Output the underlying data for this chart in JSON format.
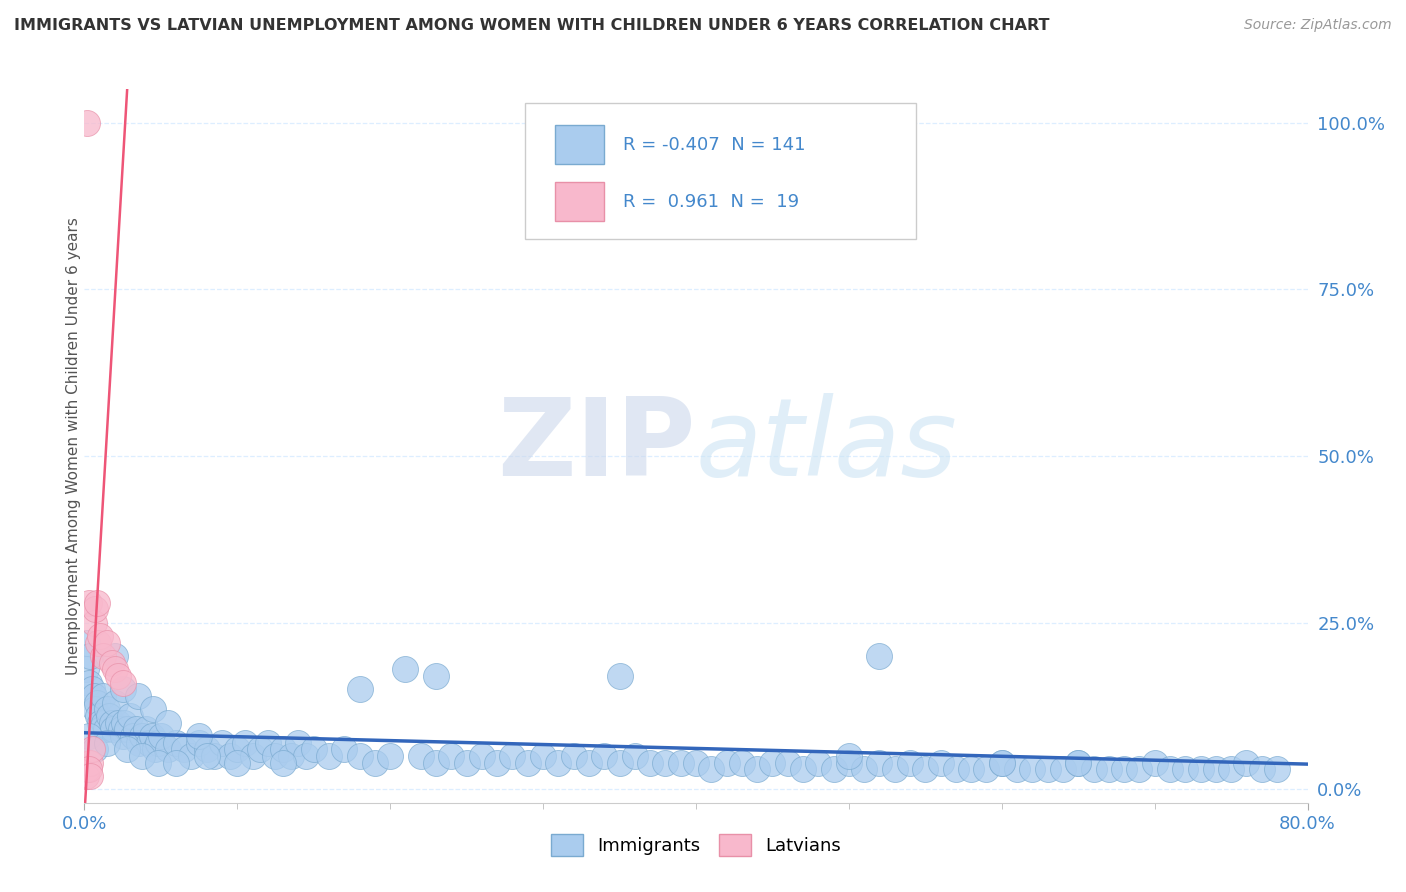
{
  "title": "IMMIGRANTS VS LATVIAN UNEMPLOYMENT AMONG WOMEN WITH CHILDREN UNDER 6 YEARS CORRELATION CHART",
  "source": "Source: ZipAtlas.com",
  "ylabel": "Unemployment Among Women with Children Under 6 years",
  "legend_immigrants": "Immigrants",
  "legend_latvians": "Latvians",
  "R_immigrants": -0.407,
  "N_immigrants": 141,
  "R_latvians": 0.961,
  "N_latvians": 19,
  "immigrant_color": "#aaccee",
  "latvian_color": "#f8b8cc",
  "immigrant_edge_color": "#7aaad0",
  "latvian_edge_color": "#e890a8",
  "trendline_immigrant_color": "#3366bb",
  "trendline_latvian_color": "#ee5577",
  "background_color": "#ffffff",
  "title_color": "#333333",
  "source_color": "#999999",
  "axis_label_color": "#4488cc",
  "grid_color": "#ddeeff",
  "xlim": [
    0.0,
    0.8
  ],
  "ylim": [
    -0.02,
    1.05
  ],
  "trendline_imm_x0": 0.0,
  "trendline_imm_y0": 0.085,
  "trendline_imm_x1": 0.8,
  "trendline_imm_y1": 0.038,
  "trendline_lat_x0": 0.0,
  "trendline_lat_y0": -0.04,
  "trendline_lat_x1": 0.028,
  "trendline_lat_y1": 1.05,
  "immigrants_x": [
    0.001,
    0.002,
    0.003,
    0.004,
    0.005,
    0.006,
    0.007,
    0.008,
    0.009,
    0.01,
    0.011,
    0.012,
    0.013,
    0.014,
    0.015,
    0.016,
    0.018,
    0.019,
    0.02,
    0.022,
    0.024,
    0.025,
    0.026,
    0.028,
    0.03,
    0.032,
    0.034,
    0.036,
    0.038,
    0.04,
    0.042,
    0.044,
    0.046,
    0.048,
    0.05,
    0.055,
    0.06,
    0.065,
    0.07,
    0.075,
    0.08,
    0.085,
    0.09,
    0.095,
    0.1,
    0.105,
    0.11,
    0.115,
    0.12,
    0.125,
    0.13,
    0.135,
    0.14,
    0.145,
    0.15,
    0.16,
    0.17,
    0.18,
    0.19,
    0.2,
    0.21,
    0.22,
    0.23,
    0.24,
    0.25,
    0.26,
    0.27,
    0.28,
    0.29,
    0.3,
    0.31,
    0.32,
    0.33,
    0.34,
    0.35,
    0.36,
    0.37,
    0.38,
    0.39,
    0.4,
    0.41,
    0.42,
    0.43,
    0.44,
    0.45,
    0.46,
    0.47,
    0.48,
    0.49,
    0.5,
    0.51,
    0.52,
    0.53,
    0.54,
    0.55,
    0.56,
    0.57,
    0.58,
    0.59,
    0.6,
    0.61,
    0.62,
    0.63,
    0.64,
    0.65,
    0.66,
    0.67,
    0.68,
    0.69,
    0.7,
    0.71,
    0.72,
    0.73,
    0.74,
    0.75,
    0.76,
    0.77,
    0.78,
    0.02,
    0.025,
    0.035,
    0.045,
    0.055,
    0.075,
    0.35,
    0.52,
    0.18,
    0.23,
    0.003,
    0.007,
    0.015,
    0.028,
    0.038,
    0.048,
    0.06,
    0.08,
    0.1,
    0.13,
    0.5,
    0.6,
    0.65
  ],
  "immigrants_y": [
    0.18,
    0.22,
    0.16,
    0.2,
    0.15,
    0.14,
    0.12,
    0.13,
    0.11,
    0.1,
    0.09,
    0.14,
    0.1,
    0.09,
    0.12,
    0.11,
    0.1,
    0.09,
    0.13,
    0.1,
    0.09,
    0.08,
    0.1,
    0.09,
    0.11,
    0.08,
    0.09,
    0.07,
    0.08,
    0.09,
    0.07,
    0.08,
    0.06,
    0.07,
    0.08,
    0.06,
    0.07,
    0.06,
    0.05,
    0.07,
    0.06,
    0.05,
    0.07,
    0.05,
    0.06,
    0.07,
    0.05,
    0.06,
    0.07,
    0.05,
    0.06,
    0.05,
    0.07,
    0.05,
    0.06,
    0.05,
    0.06,
    0.05,
    0.04,
    0.05,
    0.18,
    0.05,
    0.04,
    0.05,
    0.04,
    0.05,
    0.04,
    0.05,
    0.04,
    0.05,
    0.04,
    0.05,
    0.04,
    0.05,
    0.04,
    0.05,
    0.04,
    0.04,
    0.04,
    0.04,
    0.03,
    0.04,
    0.04,
    0.03,
    0.04,
    0.04,
    0.03,
    0.04,
    0.03,
    0.04,
    0.03,
    0.04,
    0.03,
    0.04,
    0.03,
    0.04,
    0.03,
    0.03,
    0.03,
    0.04,
    0.03,
    0.03,
    0.03,
    0.03,
    0.04,
    0.03,
    0.03,
    0.03,
    0.03,
    0.04,
    0.03,
    0.03,
    0.03,
    0.03,
    0.03,
    0.04,
    0.03,
    0.03,
    0.2,
    0.15,
    0.14,
    0.12,
    0.1,
    0.08,
    0.17,
    0.2,
    0.15,
    0.17,
    0.08,
    0.06,
    0.07,
    0.06,
    0.05,
    0.04,
    0.04,
    0.05,
    0.04,
    0.04,
    0.05,
    0.04,
    0.04
  ],
  "latvians_x": [
    0.001,
    0.002,
    0.003,
    0.004,
    0.005,
    0.006,
    0.007,
    0.008,
    0.009,
    0.01,
    0.012,
    0.015,
    0.018,
    0.02,
    0.022,
    0.025,
    0.002,
    0.003,
    0.004
  ],
  "latvians_y": [
    0.02,
    0.03,
    0.28,
    0.04,
    0.06,
    0.25,
    0.27,
    0.28,
    0.22,
    0.23,
    0.2,
    0.22,
    0.19,
    0.18,
    0.17,
    0.16,
    1.0,
    0.03,
    0.02
  ]
}
